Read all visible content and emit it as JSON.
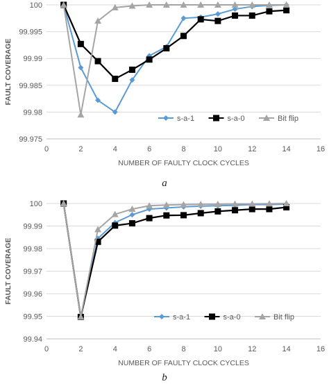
{
  "chart_data": [
    {
      "type": "line",
      "caption": "a",
      "xlabel": "NUMBER OF FAULTY CLOCK CYCLES",
      "ylabel": "FAULT COVERAGE",
      "xlim": [
        0,
        16
      ],
      "ylim": [
        99.975,
        100
      ],
      "xticks": [
        "0",
        "2",
        "4",
        "6",
        "8",
        "10",
        "12",
        "14",
        "16"
      ],
      "yticks": [
        "99.975",
        "99.98",
        "99.985",
        "99.99",
        "99.995",
        "100"
      ],
      "grid": "horizontal",
      "legend_position": "bottom-right-inside",
      "series": [
        {
          "name": "s-a-1",
          "color": "#5b9bd5",
          "marker": "diamond",
          "x": [
            1,
            2,
            3,
            4,
            5,
            6,
            7,
            8,
            9,
            10,
            11,
            12,
            13,
            14
          ],
          "y": [
            100,
            99.9883,
            99.9822,
            99.98,
            99.986,
            99.9905,
            99.9922,
            99.9975,
            99.9977,
            99.9983,
            99.9992,
            99.9997,
            99.9999,
            100
          ]
        },
        {
          "name": "s-a-0",
          "color": "#000000",
          "marker": "square",
          "x": [
            1,
            2,
            3,
            4,
            5,
            6,
            7,
            8,
            9,
            10,
            11,
            12,
            13,
            14
          ],
          "y": [
            100,
            99.9927,
            99.9895,
            99.9862,
            99.9879,
            99.9898,
            99.9919,
            99.9942,
            99.9973,
            99.997,
            99.998,
            99.998,
            99.9988,
            99.999
          ]
        },
        {
          "name": "Bit flip",
          "color": "#a5a5a5",
          "marker": "triangle",
          "x": [
            1,
            2,
            3,
            4,
            5,
            6,
            7,
            8,
            9,
            10,
            11,
            12,
            13,
            14
          ],
          "y": [
            100,
            99.9795,
            99.997,
            99.9995,
            99.9998,
            100,
            100,
            100,
            100,
            100,
            100,
            100,
            100,
            100
          ]
        }
      ]
    },
    {
      "type": "line",
      "caption": "b",
      "xlabel": "NUMBER OF FAULTY CLOCK CYCLES",
      "ylabel": "FAULT COVERAGE",
      "xlim": [
        0,
        16
      ],
      "ylim": [
        99.94,
        100
      ],
      "xticks": [
        "0",
        "2",
        "4",
        "6",
        "8",
        "10",
        "12",
        "14",
        "16"
      ],
      "yticks": [
        "99.94",
        "99.95",
        "99.96",
        "99.97",
        "99.98",
        "99.99",
        "100"
      ],
      "grid": "horizontal",
      "legend_position": "bottom-right-inside",
      "series": [
        {
          "name": "s-a-1",
          "color": "#5b9bd5",
          "marker": "diamond",
          "x": [
            1,
            2,
            3,
            4,
            5,
            6,
            7,
            8,
            9,
            10,
            11,
            12,
            13,
            14
          ],
          "y": [
            100,
            99.9495,
            99.9845,
            99.9915,
            99.995,
            99.9975,
            99.998,
            99.9985,
            99.9988,
            99.999,
            99.9992,
            99.9995,
            99.9995,
            99.9997
          ]
        },
        {
          "name": "s-a-0",
          "color": "#000000",
          "marker": "square",
          "x": [
            1,
            2,
            3,
            4,
            5,
            6,
            7,
            8,
            9,
            10,
            11,
            12,
            13,
            14
          ],
          "y": [
            100,
            99.9497,
            99.983,
            99.9902,
            99.9912,
            99.9935,
            99.9947,
            99.9948,
            99.9957,
            99.9965,
            99.997,
            99.9975,
            99.9975,
            99.9983
          ]
        },
        {
          "name": "Bit flip",
          "color": "#a5a5a5",
          "marker": "triangle",
          "x": [
            1,
            2,
            3,
            4,
            5,
            6,
            7,
            8,
            9,
            10,
            11,
            12,
            13,
            14
          ],
          "y": [
            100,
            99.9497,
            99.9885,
            99.9952,
            99.9975,
            99.999,
            99.9993,
            99.9995,
            99.9996,
            99.9997,
            99.9998,
            99.9998,
            99.9999,
            100
          ]
        }
      ]
    }
  ]
}
